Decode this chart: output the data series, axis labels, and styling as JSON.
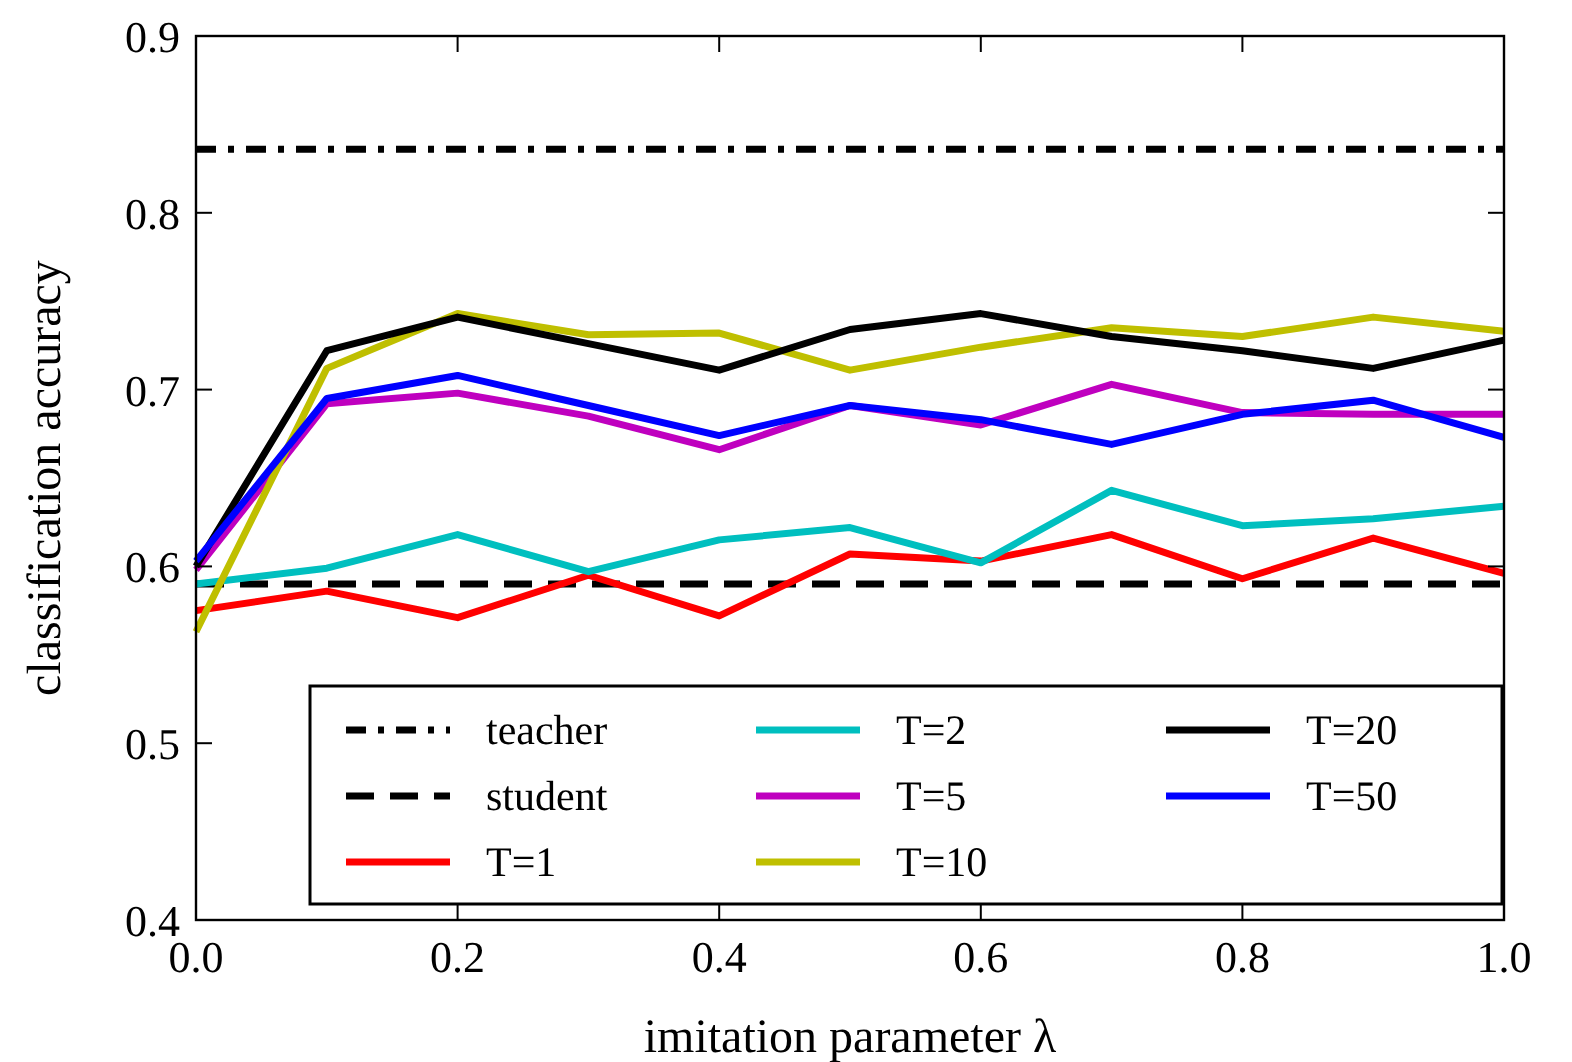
{
  "chart_data": {
    "type": "line",
    "xlabel": "imitation parameter λ",
    "ylabel": "classification accuracy",
    "x": [
      0,
      0.1,
      0.2,
      0.3,
      0.4,
      0.5,
      0.6,
      0.7,
      0.8,
      0.9,
      1.0
    ],
    "xlim": [
      0,
      1.0
    ],
    "ylim": [
      0.4,
      0.9
    ],
    "xticks": [
      {
        "value": 0,
        "label": "0.0"
      },
      0.2,
      0.4,
      0.6,
      0.8,
      {
        "value": 1,
        "label": "1.0"
      }
    ],
    "yticks": [
      0.4,
      0.5,
      0.6,
      0.7,
      0.8,
      0.9
    ],
    "legend": "bottom",
    "series": [
      {
        "name": "teacher",
        "color": "#000000",
        "line_style": "dashdot",
        "values": [
          0.836,
          0.836,
          0.836,
          0.836,
          0.836,
          0.836,
          0.836,
          0.836,
          0.836,
          0.836,
          0.836
        ]
      },
      {
        "name": "student",
        "color": "#000000",
        "line_style": "dashed",
        "values": [
          0.59,
          0.59,
          0.59,
          0.59,
          0.59,
          0.59,
          0.59,
          0.59,
          0.59,
          0.59,
          0.59
        ]
      },
      {
        "name": "T=1",
        "color": "#ff0000",
        "values": [
          0.575,
          0.586,
          0.571,
          0.595,
          0.572,
          0.607,
          0.603,
          0.618,
          0.593,
          0.616,
          0.596
        ]
      },
      {
        "name": "T=2",
        "color": "#00bfbf",
        "values": [
          0.59,
          0.599,
          0.618,
          0.597,
          0.615,
          0.622,
          0.602,
          0.643,
          0.623,
          0.627,
          0.634
        ]
      },
      {
        "name": "T=5",
        "color": "#bf00bf",
        "values": [
          0.598,
          0.692,
          0.698,
          0.685,
          0.666,
          0.691,
          0.68,
          0.703,
          0.687,
          0.686,
          0.686
        ]
      },
      {
        "name": "T=10",
        "color": "#bfbf00",
        "values": [
          0.563,
          0.712,
          0.743,
          0.731,
          0.732,
          0.711,
          0.724,
          0.735,
          0.73,
          0.741,
          0.733
        ]
      },
      {
        "name": "T=20",
        "color": "#000000",
        "values": [
          0.6,
          0.722,
          0.741,
          0.726,
          0.711,
          0.734,
          0.743,
          0.73,
          0.722,
          0.712,
          0.728
        ]
      },
      {
        "name": "T=50",
        "color": "#0000ff",
        "values": [
          0.603,
          0.695,
          0.708,
          0.691,
          0.674,
          0.691,
          0.683,
          0.669,
          0.686,
          0.694,
          0.673
        ]
      }
    ]
  }
}
